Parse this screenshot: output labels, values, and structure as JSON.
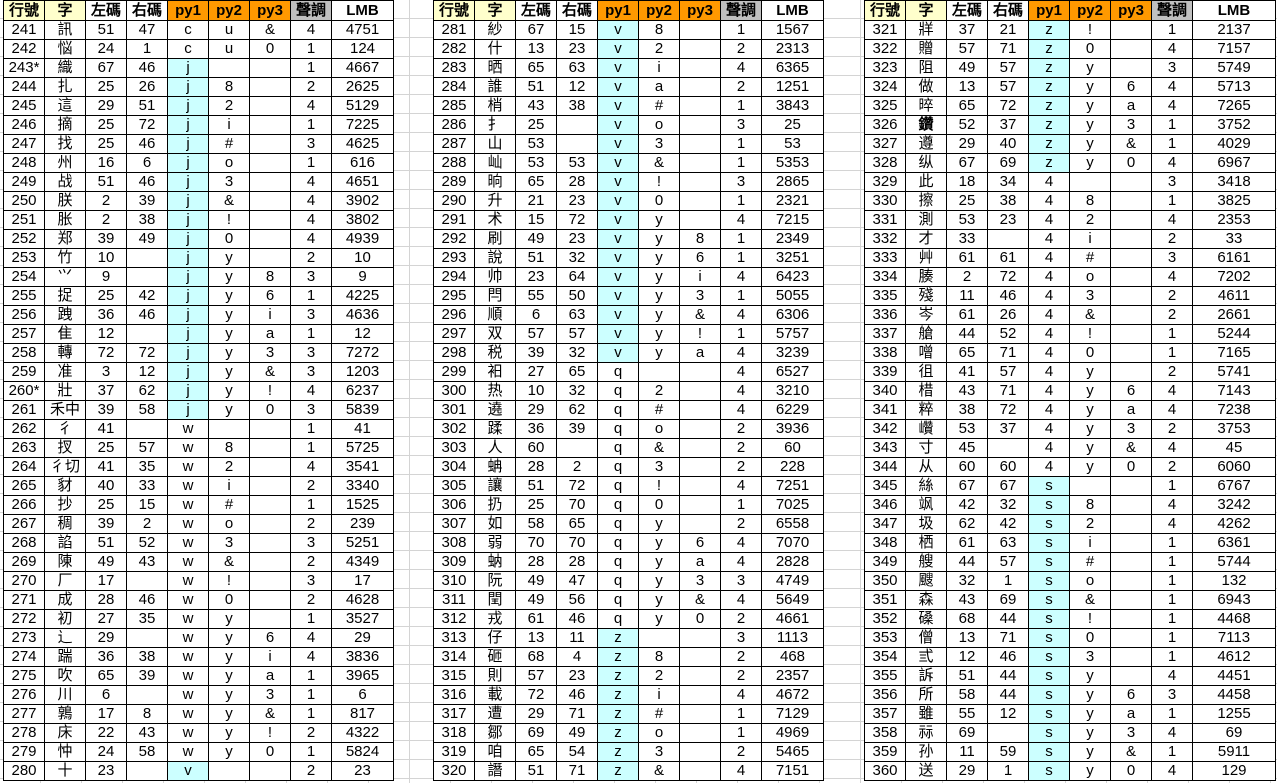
{
  "headers": [
    "行號",
    "字",
    "左碼",
    "右碼",
    "py1",
    "py2",
    "py3",
    "聲調",
    "LMB"
  ],
  "colors": {
    "header_row_char": "#ffffcc",
    "header_py": "#ff9900",
    "header_tone": "#c0c0c0",
    "py1_highlight": "#ccffff"
  },
  "py1_highlighted_values": [
    "j",
    "v",
    "z",
    "s"
  ],
  "tables": [
    {
      "rows": [
        [
          "241",
          "訊",
          "51",
          "47",
          "c",
          "u",
          "&",
          "4",
          "4751"
        ],
        [
          "242",
          "悩",
          "24",
          "1",
          "c",
          "u",
          "0",
          "1",
          "124"
        ],
        [
          "243*",
          "織",
          "67",
          "46",
          "j",
          "",
          "",
          "1",
          "4667"
        ],
        [
          "244",
          "扎",
          "25",
          "26",
          "j",
          "8",
          "",
          "2",
          "2625"
        ],
        [
          "245",
          "這",
          "29",
          "51",
          "j",
          "2",
          "",
          "4",
          "5129"
        ],
        [
          "246",
          "摘",
          "25",
          "72",
          "j",
          "i",
          "",
          "1",
          "7225"
        ],
        [
          "247",
          "找",
          "25",
          "46",
          "j",
          "#",
          "",
          "3",
          "4625"
        ],
        [
          "248",
          "州",
          "16",
          "6",
          "j",
          "o",
          "",
          "1",
          "616"
        ],
        [
          "249",
          "战",
          "51",
          "46",
          "j",
          "3",
          "",
          "4",
          "4651"
        ],
        [
          "250",
          "朕",
          "2",
          "39",
          "j",
          "&",
          "",
          "4",
          "3902"
        ],
        [
          "251",
          "胀",
          "2",
          "38",
          "j",
          "!",
          "",
          "4",
          "3802"
        ],
        [
          "252",
          "郑",
          "39",
          "49",
          "j",
          "0",
          "",
          "4",
          "4939"
        ],
        [
          "253",
          "竹",
          "10",
          "",
          "j",
          "y",
          "",
          "2",
          "10"
        ],
        [
          "254",
          "⺍",
          "9",
          "",
          "j",
          "y",
          "8",
          "3",
          "9"
        ],
        [
          "255",
          "捉",
          "25",
          "42",
          "j",
          "y",
          "6",
          "1",
          "4225"
        ],
        [
          "256",
          "跩",
          "36",
          "46",
          "j",
          "y",
          "i",
          "3",
          "4636"
        ],
        [
          "257",
          "隹",
          "12",
          "",
          "j",
          "y",
          "a",
          "1",
          "12"
        ],
        [
          "258",
          "轉",
          "72",
          "72",
          "j",
          "y",
          "3",
          "3",
          "7272"
        ],
        [
          "259",
          "准",
          "3",
          "12",
          "j",
          "y",
          "&",
          "3",
          "1203"
        ],
        [
          "260*",
          "壯",
          "37",
          "62",
          "j",
          "y",
          "!",
          "4",
          "6237"
        ],
        [
          "261",
          "禾中",
          "39",
          "58",
          "j",
          "y",
          "0",
          "3",
          "5839"
        ],
        [
          "262",
          "彳",
          "41",
          "",
          "w",
          "",
          "",
          "1",
          "41"
        ],
        [
          "263",
          "扠",
          "25",
          "57",
          "w",
          "8",
          "",
          "1",
          "5725"
        ],
        [
          "264",
          "彳切",
          "41",
          "35",
          "w",
          "2",
          "",
          "4",
          "3541"
        ],
        [
          "265",
          "豺",
          "40",
          "33",
          "w",
          "i",
          "",
          "2",
          "3340"
        ],
        [
          "266",
          "抄",
          "25",
          "15",
          "w",
          "#",
          "",
          "1",
          "1525"
        ],
        [
          "267",
          "稠",
          "39",
          "2",
          "w",
          "o",
          "",
          "2",
          "239"
        ],
        [
          "268",
          "諂",
          "51",
          "52",
          "w",
          "3",
          "",
          "3",
          "5251"
        ],
        [
          "269",
          "陳",
          "49",
          "43",
          "w",
          "&",
          "",
          "2",
          "4349"
        ],
        [
          "270",
          "厂",
          "17",
          "",
          "w",
          "!",
          "",
          "3",
          "17"
        ],
        [
          "271",
          "成",
          "28",
          "46",
          "w",
          "0",
          "",
          "2",
          "4628"
        ],
        [
          "272",
          "初",
          "27",
          "35",
          "w",
          "y",
          "",
          "1",
          "3527"
        ],
        [
          "273",
          "辶",
          "29",
          "",
          "w",
          "y",
          "6",
          "4",
          "29"
        ],
        [
          "274",
          "踹",
          "36",
          "38",
          "w",
          "y",
          "i",
          "4",
          "3836"
        ],
        [
          "275",
          "吹",
          "65",
          "39",
          "w",
          "y",
          "a",
          "1",
          "3965"
        ],
        [
          "276",
          "川",
          "6",
          "",
          "w",
          "y",
          "3",
          "1",
          "6"
        ],
        [
          "277",
          "鶉",
          "17",
          "8",
          "w",
          "y",
          "&",
          "1",
          "817"
        ],
        [
          "278",
          "床",
          "22",
          "43",
          "w",
          "y",
          "!",
          "2",
          "4322"
        ],
        [
          "279",
          "忡",
          "24",
          "58",
          "w",
          "y",
          "0",
          "1",
          "5824"
        ],
        [
          "280",
          "十",
          "23",
          "",
          "v",
          "",
          "",
          "2",
          "23"
        ]
      ]
    },
    {
      "rows": [
        [
          "281",
          "紗",
          "67",
          "15",
          "v",
          "8",
          "",
          "1",
          "1567"
        ],
        [
          "282",
          "什",
          "13",
          "23",
          "v",
          "2",
          "",
          "2",
          "2313"
        ],
        [
          "283",
          "晒",
          "65",
          "63",
          "v",
          "i",
          "",
          "4",
          "6365"
        ],
        [
          "284",
          "誰",
          "51",
          "12",
          "v",
          "a",
          "",
          "2",
          "1251"
        ],
        [
          "285",
          "梢",
          "43",
          "38",
          "v",
          "#",
          "",
          "1",
          "3843"
        ],
        [
          "286",
          "扌",
          "25",
          "",
          "v",
          "o",
          "",
          "3",
          "25"
        ],
        [
          "287",
          "山",
          "53",
          "",
          "v",
          "3",
          "",
          "1",
          "53"
        ],
        [
          "288",
          "屾",
          "53",
          "53",
          "v",
          "&",
          "",
          "1",
          "5353"
        ],
        [
          "289",
          "晌",
          "65",
          "28",
          "v",
          "!",
          "",
          "3",
          "2865"
        ],
        [
          "290",
          "升",
          "21",
          "23",
          "v",
          "0",
          "",
          "1",
          "2321"
        ],
        [
          "291",
          "术",
          "15",
          "72",
          "v",
          "y",
          "",
          "4",
          "7215"
        ],
        [
          "292",
          "刷",
          "49",
          "23",
          "v",
          "y",
          "8",
          "1",
          "2349"
        ],
        [
          "293",
          "說",
          "51",
          "32",
          "v",
          "y",
          "6",
          "1",
          "3251"
        ],
        [
          "294",
          "帅",
          "23",
          "64",
          "v",
          "y",
          "i",
          "4",
          "6423"
        ],
        [
          "295",
          "閂",
          "55",
          "50",
          "v",
          "y",
          "3",
          "1",
          "5055"
        ],
        [
          "296",
          "順",
          "6",
          "63",
          "v",
          "y",
          "&",
          "4",
          "6306"
        ],
        [
          "297",
          "双",
          "57",
          "57",
          "v",
          "y",
          "!",
          "1",
          "5757"
        ],
        [
          "298",
          "税",
          "39",
          "32",
          "v",
          "y",
          "a",
          "4",
          "3239"
        ],
        [
          "299",
          "衵",
          "27",
          "65",
          "q",
          "",
          "",
          "4",
          "6527"
        ],
        [
          "300",
          "热",
          "10",
          "32",
          "q",
          "2",
          "",
          "4",
          "3210"
        ],
        [
          "301",
          "遶",
          "29",
          "62",
          "q",
          "#",
          "",
          "4",
          "6229"
        ],
        [
          "302",
          "蹂",
          "36",
          "39",
          "q",
          "o",
          "",
          "2",
          "3936"
        ],
        [
          "303",
          "人",
          "60",
          "",
          "q",
          "&",
          "",
          "2",
          "60"
        ],
        [
          "304",
          "蚺",
          "28",
          "2",
          "q",
          "3",
          "",
          "2",
          "228"
        ],
        [
          "305",
          "讓",
          "51",
          "72",
          "q",
          "!",
          "",
          "4",
          "7251"
        ],
        [
          "306",
          "扔",
          "25",
          "70",
          "q",
          "0",
          "",
          "1",
          "7025"
        ],
        [
          "307",
          "如",
          "58",
          "65",
          "q",
          "y",
          "",
          "2",
          "6558"
        ],
        [
          "308",
          "弱",
          "70",
          "70",
          "q",
          "y",
          "6",
          "4",
          "7070"
        ],
        [
          "309",
          "蚋",
          "28",
          "28",
          "q",
          "y",
          "a",
          "4",
          "2828"
        ],
        [
          "310",
          "阮",
          "49",
          "47",
          "q",
          "y",
          "3",
          "3",
          "4749"
        ],
        [
          "311",
          "閏",
          "49",
          "56",
          "q",
          "y",
          "&",
          "4",
          "5649"
        ],
        [
          "312",
          "戎",
          "61",
          "46",
          "q",
          "y",
          "0",
          "2",
          "4661"
        ],
        [
          "313",
          "仔",
          "13",
          "11",
          "z",
          "",
          "",
          "3",
          "1113"
        ],
        [
          "314",
          "砸",
          "68",
          "4",
          "z",
          "8",
          "",
          "2",
          "468"
        ],
        [
          "315",
          "則",
          "57",
          "23",
          "z",
          "2",
          "",
          "2",
          "2357"
        ],
        [
          "316",
          "載",
          "72",
          "46",
          "z",
          "i",
          "",
          "4",
          "4672"
        ],
        [
          "317",
          "遭",
          "29",
          "71",
          "z",
          "#",
          "",
          "1",
          "7129"
        ],
        [
          "318",
          "鄒",
          "69",
          "49",
          "z",
          "o",
          "",
          "1",
          "4969"
        ],
        [
          "319",
          "咱",
          "65",
          "54",
          "z",
          "3",
          "",
          "2",
          "5465"
        ],
        [
          "320",
          "譖",
          "51",
          "71",
          "z",
          "&",
          "",
          "4",
          "7151"
        ]
      ]
    },
    {
      "rows": [
        [
          "321",
          "牂",
          "37",
          "21",
          "z",
          "!",
          "",
          "1",
          "2137"
        ],
        [
          "322",
          "贈",
          "57",
          "71",
          "z",
          "0",
          "",
          "4",
          "7157"
        ],
        [
          "323",
          "阻",
          "49",
          "57",
          "z",
          "y",
          "",
          "3",
          "5749"
        ],
        [
          "324",
          "做",
          "13",
          "57",
          "z",
          "y",
          "6",
          "4",
          "5713"
        ],
        [
          "325",
          "晬",
          "65",
          "72",
          "z",
          "y",
          "a",
          "4",
          "7265"
        ],
        [
          "326",
          "鑽",
          "52",
          "37",
          "z",
          "y",
          "3",
          "1",
          "3752"
        ],
        [
          "327",
          "遵",
          "29",
          "40",
          "z",
          "y",
          "&",
          "1",
          "4029"
        ],
        [
          "328",
          "纵",
          "67",
          "69",
          "z",
          "y",
          "0",
          "4",
          "6967"
        ],
        [
          "329",
          "此",
          "18",
          "34",
          "4",
          "",
          "",
          "3",
          "3418"
        ],
        [
          "330",
          "擦",
          "25",
          "38",
          "4",
          "8",
          "",
          "1",
          "3825"
        ],
        [
          "331",
          "測",
          "53",
          "23",
          "4",
          "2",
          "",
          "4",
          "2353"
        ],
        [
          "332",
          "才",
          "33",
          "",
          "4",
          "i",
          "",
          "2",
          "33"
        ],
        [
          "333",
          "艸",
          "61",
          "61",
          "4",
          "#",
          "",
          "3",
          "6161"
        ],
        [
          "334",
          "腠",
          "2",
          "72",
          "4",
          "o",
          "",
          "4",
          "7202"
        ],
        [
          "335",
          "殘",
          "11",
          "46",
          "4",
          "3",
          "",
          "2",
          "4611"
        ],
        [
          "336",
          "岑",
          "61",
          "26",
          "4",
          "&",
          "",
          "2",
          "2661"
        ],
        [
          "337",
          "艙",
          "44",
          "52",
          "4",
          "!",
          "",
          "1",
          "5244"
        ],
        [
          "338",
          "噌",
          "65",
          "71",
          "4",
          "0",
          "",
          "1",
          "7165"
        ],
        [
          "339",
          "徂",
          "41",
          "57",
          "4",
          "y",
          "",
          "2",
          "5741"
        ],
        [
          "340",
          "棤",
          "43",
          "71",
          "4",
          "y",
          "6",
          "4",
          "7143"
        ],
        [
          "341",
          "粹",
          "38",
          "72",
          "4",
          "y",
          "a",
          "4",
          "7238"
        ],
        [
          "342",
          "巑",
          "53",
          "37",
          "4",
          "y",
          "3",
          "2",
          "3753"
        ],
        [
          "343",
          "寸",
          "45",
          "",
          "4",
          "y",
          "&",
          "4",
          "45"
        ],
        [
          "344",
          "从",
          "60",
          "60",
          "4",
          "y",
          "0",
          "2",
          "6060"
        ],
        [
          "345",
          "絲",
          "67",
          "67",
          "s",
          "",
          "",
          "1",
          "6767"
        ],
        [
          "346",
          "飒",
          "42",
          "32",
          "s",
          "8",
          "",
          "4",
          "3242"
        ],
        [
          "347",
          "圾",
          "62",
          "42",
          "s",
          "2",
          "",
          "4",
          "4262"
        ],
        [
          "348",
          "栖",
          "61",
          "63",
          "s",
          "i",
          "",
          "1",
          "6361"
        ],
        [
          "349",
          "艘",
          "44",
          "57",
          "s",
          "#",
          "",
          "1",
          "5744"
        ],
        [
          "350",
          "颼",
          "32",
          "1",
          "s",
          "o",
          "",
          "1",
          "132"
        ],
        [
          "351",
          "森",
          "43",
          "69",
          "s",
          "&",
          "",
          "1",
          "6943"
        ],
        [
          "352",
          "磉",
          "68",
          "44",
          "s",
          "!",
          "",
          "1",
          "4468"
        ],
        [
          "353",
          "僧",
          "13",
          "71",
          "s",
          "0",
          "",
          "1",
          "7113"
        ],
        [
          "354",
          "弎",
          "12",
          "46",
          "s",
          "3",
          "",
          "1",
          "4612"
        ],
        [
          "355",
          "訴",
          "51",
          "44",
          "s",
          "y",
          "",
          "4",
          "4451"
        ],
        [
          "356",
          "所",
          "58",
          "44",
          "s",
          "y",
          "6",
          "3",
          "4458"
        ],
        [
          "357",
          "雖",
          "55",
          "12",
          "s",
          "y",
          "a",
          "1",
          "1255"
        ],
        [
          "358",
          "祘",
          "69",
          "",
          "s",
          "y",
          "3",
          "4",
          "69"
        ],
        [
          "359",
          "孙",
          "11",
          "59",
          "s",
          "y",
          "&",
          "1",
          "5911"
        ],
        [
          "360",
          "送",
          "29",
          "1",
          "s",
          "y",
          "0",
          "4",
          "129"
        ]
      ]
    }
  ]
}
